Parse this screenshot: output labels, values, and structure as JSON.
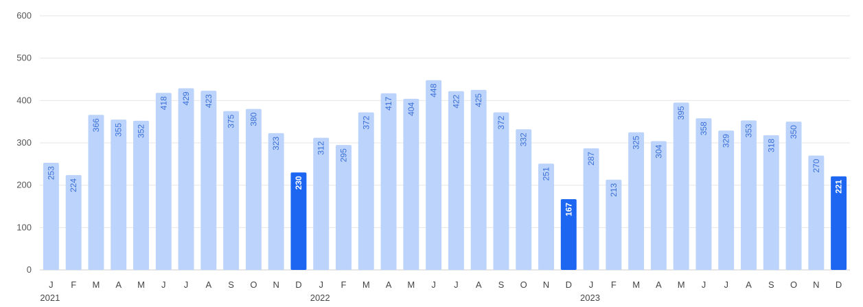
{
  "chart_data": {
    "type": "bar",
    "title": "",
    "xlabel": "",
    "ylabel": "",
    "ylim": [
      0,
      600
    ],
    "yticks": [
      0,
      100,
      200,
      300,
      400,
      500,
      600
    ],
    "grid": true,
    "legend": "none",
    "colors": {
      "normal": "#bcd3fb",
      "highlight": "#1c66f2",
      "label_on_normal": "#3a6fd8",
      "label_on_highlight": "#ffffff"
    },
    "categories": [
      "J",
      "F",
      "M",
      "A",
      "M",
      "J",
      "J",
      "A",
      "S",
      "O",
      "N",
      "D",
      "J",
      "F",
      "M",
      "A",
      "M",
      "J",
      "J",
      "A",
      "S",
      "O",
      "N",
      "D",
      "J",
      "F",
      "M",
      "A",
      "M",
      "J",
      "J",
      "A",
      "S",
      "O",
      "N",
      "D"
    ],
    "years": [
      {
        "label": "2021",
        "start_index": 0
      },
      {
        "label": "2022",
        "start_index": 12
      },
      {
        "label": "2023",
        "start_index": 24
      }
    ],
    "values": [
      253,
      224,
      366,
      355,
      352,
      418,
      429,
      423,
      375,
      380,
      323,
      230,
      312,
      295,
      372,
      417,
      404,
      448,
      422,
      425,
      372,
      332,
      251,
      167,
      287,
      213,
      325,
      304,
      395,
      358,
      329,
      353,
      318,
      350,
      270,
      221
    ],
    "highlight_indices": [
      11,
      23,
      35
    ]
  }
}
